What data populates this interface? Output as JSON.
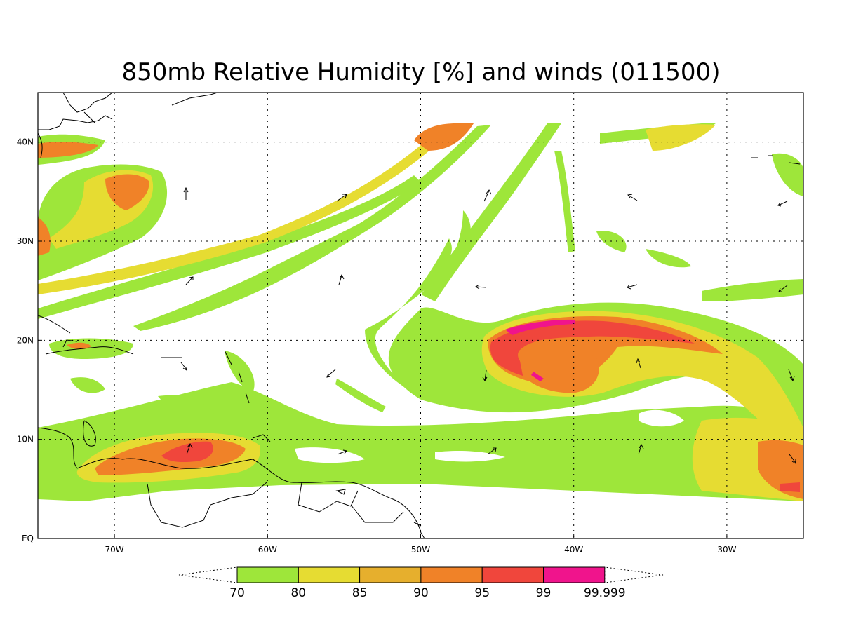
{
  "map": {
    "title": "850mb Relative Humidity [%] and winds (011500)",
    "lon_labels": [
      "70W",
      "60W",
      "50W",
      "40W",
      "30W"
    ],
    "lat_labels": [
      "EQ",
      "10N",
      "20N",
      "30N",
      "40N"
    ],
    "lon_values": [
      -70,
      -60,
      -50,
      -40,
      -30
    ],
    "lat_values": [
      0,
      10,
      20,
      30,
      40
    ],
    "extent": {
      "lon_min": -75,
      "lon_max": -25,
      "lat_min": 0,
      "lat_max": 45
    },
    "gridlines": true
  },
  "colorbar": {
    "labels": [
      "70",
      "80",
      "85",
      "90",
      "95",
      "99",
      "99.999"
    ],
    "colors": [
      "#9ee63a",
      "#e6dc32",
      "#e6af2d",
      "#f08228",
      "#f0463c",
      "#f0148c"
    ],
    "extend": "both"
  },
  "field_colors": {
    "c70": "#9ee63a",
    "c80": "#e6dc32",
    "c85": "#e6af2d",
    "c90": "#f08228",
    "c95": "#f0463c",
    "c99": "#f0148c"
  }
}
